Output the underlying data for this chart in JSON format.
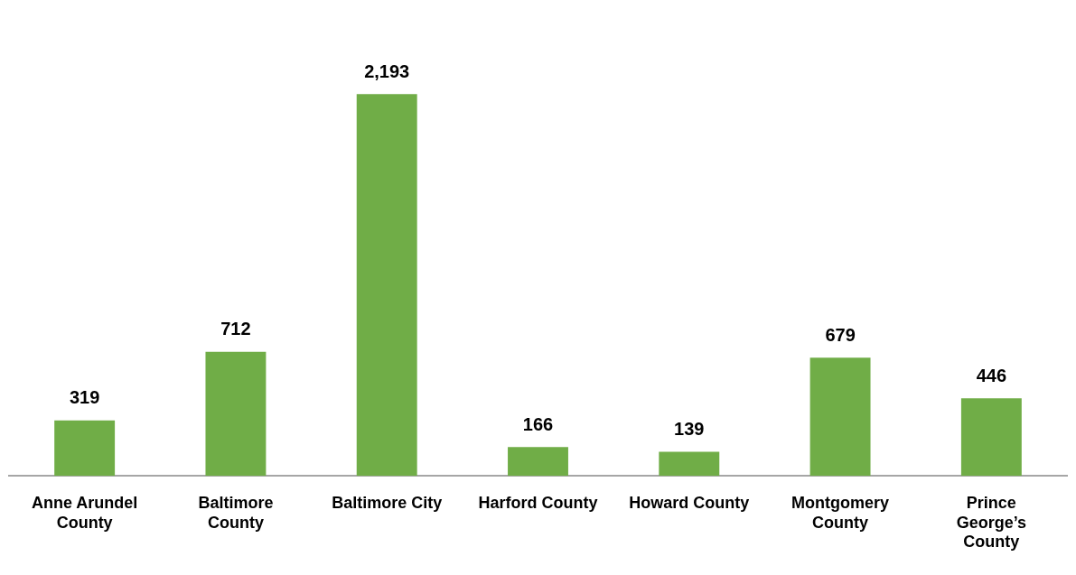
{
  "chart_data": {
    "type": "bar",
    "categories": [
      "Anne Arundel County",
      "Baltimore County",
      "Baltimore City",
      "Harford County",
      "Howard County",
      "Montgomery County",
      "Prince George’s County"
    ],
    "values": [
      319,
      712,
      2193,
      166,
      139,
      679,
      446
    ],
    "value_labels": [
      "319",
      "712",
      "2,193",
      "166",
      "139",
      "679",
      "446"
    ],
    "color": "#70ad47",
    "grid": false,
    "legend": false
  }
}
